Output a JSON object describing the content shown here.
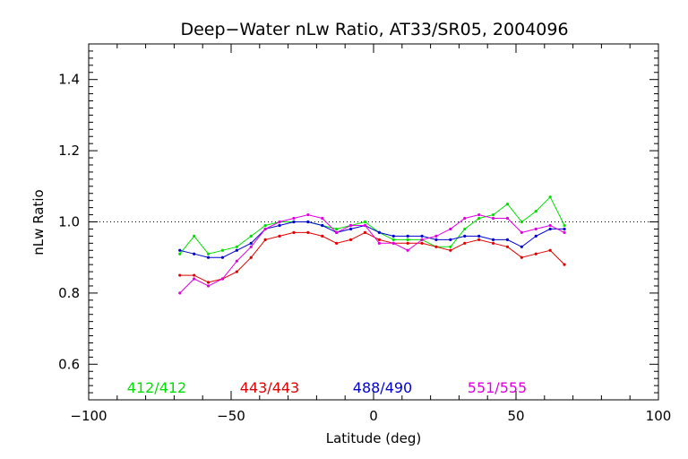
{
  "chart_data": {
    "type": "line",
    "title": "Deep−Water nLw Ratio, AT33/SR05, 2004096",
    "xlabel": "Latitude (deg)",
    "ylabel": "nLw Ratio",
    "xlim": [
      -100,
      100
    ],
    "ylim": [
      0.5,
      1.5
    ],
    "xticks": [
      "−100",
      "−50",
      "0",
      "50",
      "100"
    ],
    "yticks": [
      "0.6",
      "0.8",
      "1.0",
      "1.2",
      "1.4"
    ],
    "reference_line": {
      "y": 1.0,
      "style": "dotted"
    },
    "legend_placement": "bottom-inside",
    "x": [
      -68,
      -63,
      -58,
      -53,
      -48,
      -43,
      -38,
      -33,
      -28,
      -23,
      -18,
      -13,
      -8,
      -3,
      2,
      7,
      12,
      17,
      22,
      27,
      32,
      37,
      42,
      47,
      52,
      57,
      62,
      67
    ],
    "series": [
      {
        "name": "412/412",
        "color": "#00e000",
        "values": [
          0.91,
          0.96,
          0.91,
          0.92,
          0.93,
          0.96,
          0.99,
          1.0,
          1.0,
          1.0,
          0.99,
          0.98,
          0.99,
          1.0,
          0.97,
          0.95,
          0.95,
          0.95,
          0.93,
          0.93,
          0.98,
          1.01,
          1.02,
          1.05,
          1.0,
          1.03,
          1.07,
          0.99
        ]
      },
      {
        "name": "443/443",
        "color": "#e00000",
        "values": [
          0.85,
          0.85,
          0.83,
          0.84,
          0.86,
          0.9,
          0.95,
          0.96,
          0.97,
          0.97,
          0.96,
          0.94,
          0.95,
          0.97,
          0.95,
          0.94,
          0.94,
          0.94,
          0.93,
          0.92,
          0.94,
          0.95,
          0.94,
          0.93,
          0.9,
          0.91,
          0.92,
          0.88
        ]
      },
      {
        "name": "488/490",
        "color": "#0000d0",
        "values": [
          0.92,
          0.91,
          0.9,
          0.9,
          0.92,
          0.94,
          0.98,
          0.99,
          1.0,
          1.0,
          0.99,
          0.97,
          0.98,
          0.99,
          0.97,
          0.96,
          0.96,
          0.96,
          0.95,
          0.95,
          0.96,
          0.96,
          0.95,
          0.95,
          0.93,
          0.96,
          0.98,
          0.98
        ]
      },
      {
        "name": "551/555",
        "color": "#e000e0",
        "values": [
          0.8,
          0.84,
          0.82,
          0.84,
          0.89,
          0.93,
          0.98,
          1.0,
          1.01,
          1.02,
          1.01,
          0.97,
          0.99,
          0.99,
          0.94,
          0.94,
          0.92,
          0.95,
          0.96,
          0.98,
          1.01,
          1.02,
          1.01,
          1.01,
          0.97,
          0.98,
          0.99,
          0.97
        ]
      }
    ]
  }
}
